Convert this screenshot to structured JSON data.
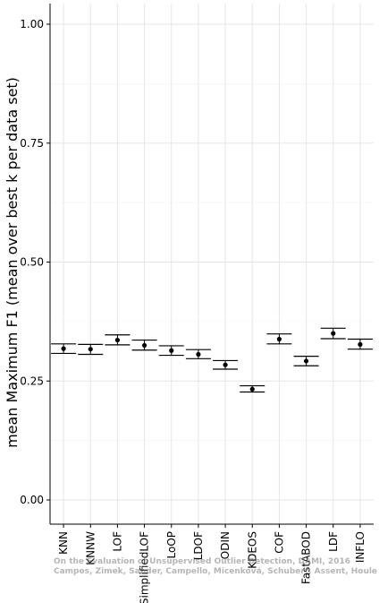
{
  "chart_data": {
    "type": "scatter",
    "title": "",
    "xlabel": "",
    "ylabel": "mean Maximum F1 (mean over best k per data set)",
    "ylim": [
      0,
      1
    ],
    "yticks": [
      "0.00",
      "0.25",
      "0.50",
      "0.75",
      "1.00"
    ],
    "ytick_values": [
      0,
      0.25,
      0.5,
      0.75,
      1.0
    ],
    "grid": true,
    "error_bars": true,
    "categories": [
      "KNN",
      "KNNW",
      "LOF",
      "SimplifiedLOF",
      "LoOP",
      "LDOF",
      "ODIN",
      "KDEOS",
      "COF",
      "FastABOD",
      "LDF",
      "INFLO"
    ],
    "series": [
      {
        "mean": [
          0.318,
          0.317,
          0.336,
          0.325,
          0.314,
          0.306,
          0.284,
          0.233,
          0.338,
          0.292,
          0.35,
          0.327
        ],
        "lower": [
          0.308,
          0.306,
          0.326,
          0.315,
          0.304,
          0.297,
          0.275,
          0.227,
          0.328,
          0.282,
          0.339,
          0.317
        ],
        "upper": [
          0.328,
          0.327,
          0.347,
          0.336,
          0.324,
          0.316,
          0.293,
          0.24,
          0.349,
          0.302,
          0.361,
          0.338
        ]
      }
    ]
  },
  "watermark": {
    "line1": "On the Evaluation of Unsupervised Outlier Detection, DAMI, 2016",
    "line2": "Campos, Zimek, Sander, Campello, Micenková, Schubert, Assent, Houle"
  }
}
